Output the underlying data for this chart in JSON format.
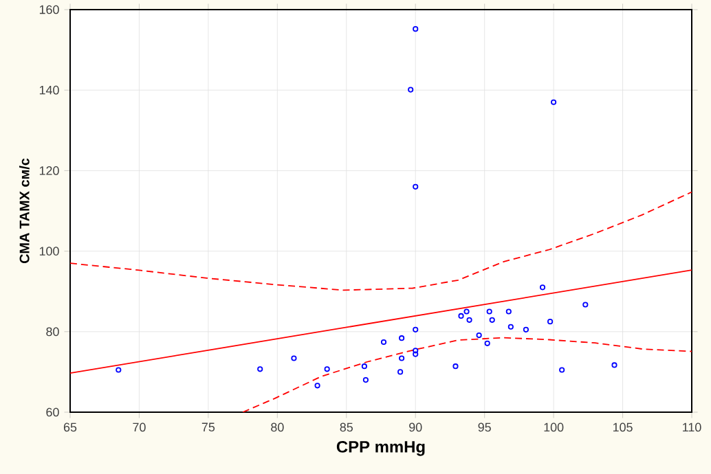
{
  "chart_data": {
    "type": "scatter",
    "xlabel": "CPP mmHg",
    "ylabel": "CMA TAMX см/с",
    "xlim": [
      65,
      110
    ],
    "xticks": [
      65,
      70,
      75,
      80,
      85,
      90,
      95,
      100,
      105,
      110
    ],
    "ylim": [
      60,
      160
    ],
    "yticks": [
      60,
      80,
      100,
      120,
      140,
      160
    ],
    "grid": true,
    "series": [
      {
        "color": "#0000ff",
        "marker": "circle",
        "x": [
          68.5,
          78.75,
          81.2,
          82.9,
          83.6,
          86.3,
          86.4,
          87.7,
          89.0,
          89.0,
          88.9,
          89.65,
          90.0,
          90.0,
          90.0,
          90.0,
          90.0,
          92.9,
          93.3,
          93.7,
          93.9,
          94.6,
          95.2,
          95.35,
          95.55,
          96.75,
          96.9,
          98.0,
          99.2,
          99.75,
          100.0,
          100.6,
          102.3,
          104.4
        ],
        "values": [
          70.5,
          70.7,
          73.4,
          66.6,
          70.7,
          71.4,
          68.0,
          77.4,
          78.4,
          73.4,
          70.0,
          140.1,
          155.2,
          116.0,
          80.5,
          75.3,
          74.4,
          71.4,
          83.9,
          85.0,
          82.9,
          79.1,
          77.1,
          85.0,
          82.9,
          85.0,
          81.2,
          80.5,
          91.0,
          82.5,
          137.0,
          70.5,
          86.7,
          71.7
        ]
      },
      {
        "type": "line",
        "color": "#ff0000",
        "marker": "none",
        "line_style": "solid",
        "x": [
          65,
          110
        ],
        "values": [
          69.7,
          95.3
        ]
      },
      {
        "type": "line",
        "color": "#ff0000",
        "marker": "none",
        "line_style": "dashed",
        "x": [
          65,
          69.9,
          74.9,
          79.8,
          84.8,
          89.8,
          93.1,
          96.4,
          99.7,
          103.0,
          106.4,
          110
        ],
        "values": [
          97.0,
          95.3,
          93.3,
          91.7,
          90.3,
          90.8,
          92.8,
          97.4,
          100.4,
          104.4,
          109.0,
          114.7
        ]
      },
      {
        "type": "line",
        "color": "#ff0000",
        "marker": "none",
        "line_style": "dashed",
        "x": [
          77.5,
          79.8,
          83.2,
          86.5,
          89.8,
          93.1,
          96.4,
          99.7,
          103.0,
          106.4,
          110
        ],
        "values": [
          60,
          63.4,
          68.9,
          72.5,
          75.4,
          77.9,
          78.5,
          78.0,
          77.2,
          75.7,
          75.1
        ]
      }
    ]
  }
}
